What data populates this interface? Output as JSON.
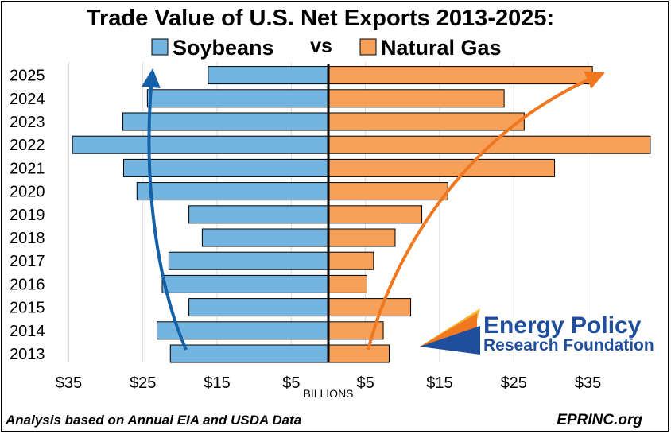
{
  "chart_data": {
    "type": "bar",
    "orientation": "horizontal-butterfly",
    "title": "Trade Value of U.S. Net Exports 2013-2025:",
    "vs_label": "vs",
    "xlabel": "BILLIONS",
    "categories": [
      "2025",
      "2024",
      "2023",
      "2022",
      "2021",
      "2020",
      "2019",
      "2018",
      "2017",
      "2016",
      "2015",
      "2014",
      "2013"
    ],
    "series": [
      {
        "name": "Soybeans",
        "side": "left",
        "color": "#74b4e0",
        "values": [
          16.2,
          24.4,
          27.7,
          34.5,
          27.6,
          25.8,
          18.8,
          17.0,
          21.5,
          22.4,
          18.8,
          23.1,
          21.3
        ]
      },
      {
        "name": "Natural Gas",
        "side": "right",
        "color": "#f7a05a",
        "values": [
          35.6,
          23.7,
          26.4,
          43.4,
          30.5,
          16.1,
          12.6,
          9.0,
          6.1,
          5.2,
          11.1,
          7.4,
          8.2
        ]
      }
    ],
    "xticks": [
      "$35",
      "$25",
      "$15",
      "$5",
      "$5",
      "$15",
      "$25",
      "$35"
    ],
    "xtick_values": [
      -35,
      -25,
      -15,
      -5,
      5,
      15,
      25,
      35
    ],
    "xlim": [
      -36,
      45
    ],
    "grid": "vertical",
    "legend": "top-center"
  },
  "footer": {
    "source": "Analysis based on Annual EIA and USDA Data",
    "site": "EPRINC.org"
  },
  "logo": {
    "line1": "Energy Policy",
    "line2": "Research Foundation"
  }
}
